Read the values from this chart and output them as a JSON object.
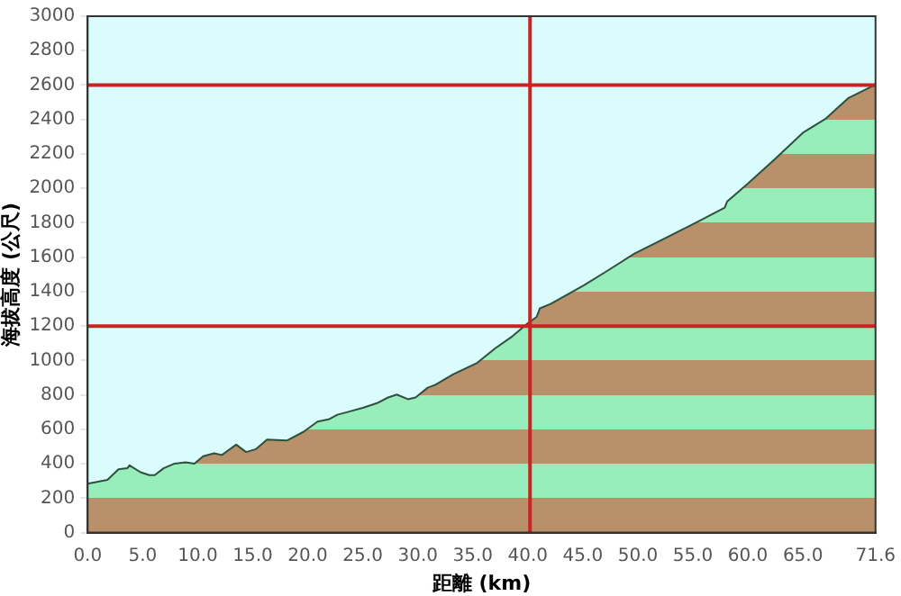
{
  "chart_data": {
    "type": "area",
    "xlabel": "距離 (km)",
    "ylabel": "海拔高度 (公尺)",
    "series": [
      {
        "color": "#2f4f3f",
        "x": [
          0,
          1.8,
          2.8,
          3.6,
          3.8,
          4.8,
          5.6,
          6.1,
          6.9,
          7.9,
          8.9,
          9.7,
          10.5,
          11.5,
          12.2,
          13.5,
          14.4,
          15.3,
          16.3,
          18.1,
          19.6,
          20.9,
          21.9,
          22.7,
          23.7,
          25.0,
          26.3,
          27.3,
          28.1,
          29.1,
          29.8,
          30.9,
          31.6,
          33.2,
          35.4,
          37.0,
          38.5,
          40.0,
          40.8,
          41.1,
          42.1,
          45.1,
          47.2,
          49.7,
          52.8,
          55.9,
          57.9,
          58.1,
          59.9,
          62.5,
          65.0,
          67.1,
          69.1,
          71.2,
          71.6
        ],
        "values": [
          284,
          307,
          368,
          374,
          391,
          351,
          334,
          334,
          374,
          401,
          408,
          401,
          444,
          461,
          451,
          511,
          468,
          485,
          541,
          535,
          585,
          645,
          658,
          685,
          702,
          725,
          752,
          785,
          802,
          775,
          785,
          842,
          859,
          919,
          986,
          1069,
          1136,
          1216,
          1253,
          1303,
          1330,
          1437,
          1520,
          1621,
          1721,
          1821,
          1888,
          1922,
          2022,
          2172,
          2323,
          2406,
          2523,
          2590,
          2600
        ]
      }
    ],
    "xlim": [
      0,
      71.6
    ],
    "xticks": [
      {
        "value": 0,
        "label": "0.0"
      },
      {
        "value": 5,
        "label": "5.0"
      },
      {
        "value": 10,
        "label": "10.0"
      },
      {
        "value": 15,
        "label": "15.0"
      },
      {
        "value": 20,
        "label": "20.0"
      },
      {
        "value": 25,
        "label": "25.0"
      },
      {
        "value": 30,
        "label": "30.0"
      },
      {
        "value": 35,
        "label": "35.0"
      },
      {
        "value": 40,
        "label": "40.0"
      },
      {
        "value": 45,
        "label": "45.0"
      },
      {
        "value": 50,
        "label": "50.0"
      },
      {
        "value": 55,
        "label": "55.0"
      },
      {
        "value": 60,
        "label": "60.0"
      },
      {
        "value": 65,
        "label": "65.0"
      },
      {
        "value": 71.6,
        "label": "71.6"
      }
    ],
    "ylim": [
      0,
      3000
    ],
    "yticks": [
      0,
      200,
      400,
      600,
      800,
      1000,
      1200,
      1400,
      1600,
      1800,
      2000,
      2200,
      2400,
      2600,
      2800,
      3000
    ],
    "ref_lines": [
      {
        "axis": "y",
        "value": 2600,
        "color": "#cc2222"
      },
      {
        "axis": "y",
        "value": 1200,
        "color": "#cc2222"
      },
      {
        "axis": "x",
        "value": 40.2,
        "color": "#cc2222"
      }
    ],
    "grid": false,
    "legend": false,
    "marker": "none",
    "line_style": "solid"
  }
}
